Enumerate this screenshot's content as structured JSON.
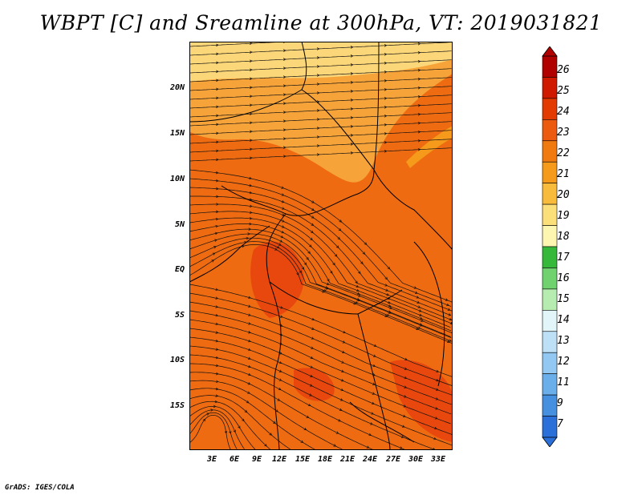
{
  "title": "WBPT [C] and Sreamline at 300hPa, VT: 2019031821",
  "credit": "GrADS: IGES/COLA",
  "map": {
    "lat_labels": [
      "20N",
      "15N",
      "10N",
      "5N",
      "EQ",
      "5S",
      "10S",
      "15S"
    ],
    "lon_labels": [
      "3E",
      "6E",
      "9E",
      "12E",
      "15E",
      "18E",
      "21E",
      "24E",
      "27E",
      "30E",
      "33E"
    ],
    "lat_values": [
      20,
      15,
      10,
      5,
      0,
      -5,
      -10,
      -15
    ],
    "lon_values": [
      3,
      6,
      9,
      12,
      15,
      18,
      21,
      24,
      27,
      30,
      33
    ]
  },
  "colorbar": {
    "labels": [
      "26",
      "25",
      "24",
      "23",
      "22",
      "21",
      "20",
      "19",
      "18",
      "17",
      "16",
      "15",
      "14",
      "13",
      "12",
      "11",
      "9",
      "7"
    ],
    "colors": [
      "#b00000",
      "#cf1a00",
      "#e23a00",
      "#ec5a10",
      "#f07a10",
      "#f59a1a",
      "#f8bb3c",
      "#fbdf78",
      "#fdf6b0",
      "#36b83a",
      "#6fd26f",
      "#b6ecb0",
      "#e2f5f9",
      "#bde0f7",
      "#93c8f2",
      "#6aaeea",
      "#4690e0",
      "#2a70d8"
    ]
  },
  "colors": {
    "field_main": "#ee6b12",
    "field_warm": "#e8480e",
    "field_north": "#f6a43a",
    "field_top": "#fcd77a",
    "streamline": "#111111"
  }
}
